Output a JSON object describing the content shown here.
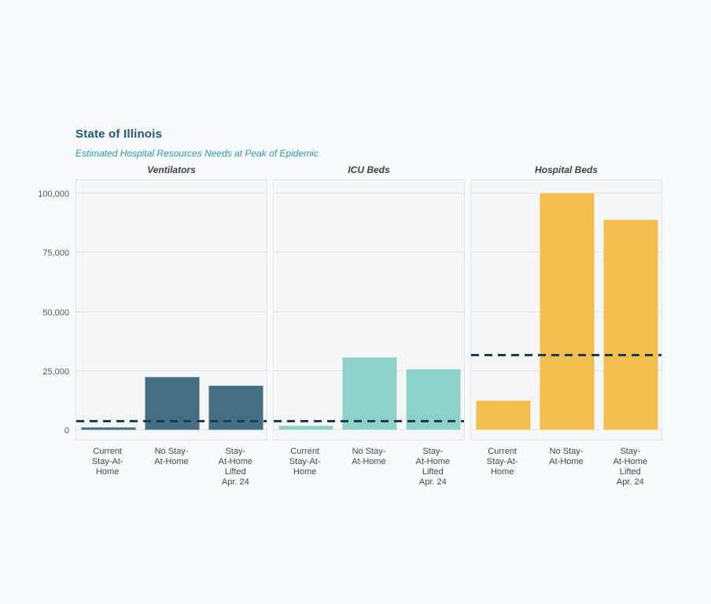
{
  "header": {
    "title": "State of Illinois",
    "subtitle": "Estimated Hospital Resources Needs at Peak of Epidemic"
  },
  "colors": {
    "page_bg": "#f8fbfd",
    "panel_bg": "#f5f7f9",
    "panel_border": "#e3e7eb",
    "gridline": "#e4e7ea",
    "title_text": "#1d5a77",
    "subtitle_text": "#2b9ab0",
    "capacity_line": "#1e3c52",
    "ventilators_bar": "#456e83",
    "icu_beds_bar": "#8ed1c8",
    "hospital_beds_bar": "#f2bf4e"
  },
  "chart_data": {
    "type": "bar",
    "title": "State of Illinois",
    "subtitle": "Estimated Hospital Resources Needs at Peak of Epidemic",
    "layout": "three faceted panels sharing one y axis, horizontal dashed capacity reference line per panel, grid on, no legend",
    "categories": [
      "Current Stay-At-Home",
      "No Stay-At-Home",
      "Stay-At-Home Lifted Apr. 24"
    ],
    "category_display_lines": [
      "Current\nStay-At-\nHome",
      "No Stay-\nAt-Home",
      "Stay-\nAt-Home\nLifted\nApr. 24"
    ],
    "y_ticks": [
      0,
      25000,
      50000,
      75000,
      100000
    ],
    "y_tick_labels": [
      "0",
      "25,000",
      "50,000",
      "75,000",
      "100,000"
    ],
    "ylim": [
      0,
      107000
    ],
    "panels": [
      {
        "title": "Ventilators",
        "bar_color": "#456e83",
        "values": [
          1500,
          22500,
          19000
        ],
        "capacity_line": 3500
      },
      {
        "title": "ICU Beds",
        "bar_color": "#8ed1c8",
        "values": [
          2000,
          31000,
          26000
        ],
        "capacity_line": 3500
      },
      {
        "title": "Hospital Beds",
        "bar_color": "#f2bf4e",
        "values": [
          12500,
          100500,
          89000
        ],
        "capacity_line": 31500
      }
    ]
  }
}
